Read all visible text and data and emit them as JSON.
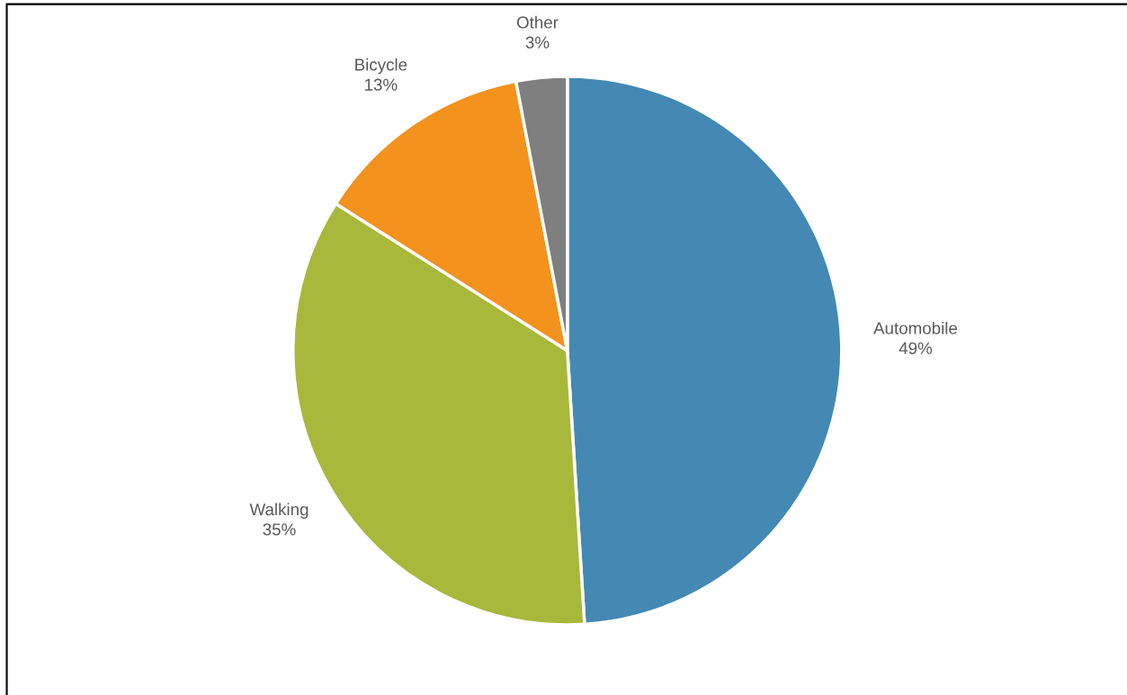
{
  "chart_data": {
    "type": "pie",
    "categories": [
      "Automobile",
      "Walking",
      "Bicycle",
      "Other"
    ],
    "values": [
      49,
      35,
      13,
      3
    ],
    "value_labels": [
      "49%",
      "35%",
      "13%",
      "3%"
    ],
    "colors": [
      "#4389b3",
      "#a8b83a",
      "#f4921e",
      "#7f7f7f"
    ],
    "legend": false
  }
}
